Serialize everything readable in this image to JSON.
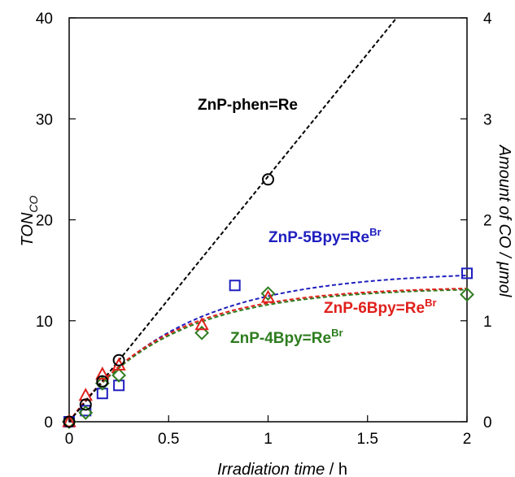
{
  "chart_data": {
    "type": "scatter",
    "xlabel": "Irradiation time",
    "xlabel_unit": " / h",
    "ylabel_main": "TON",
    "ylabel_sub": "CO",
    "y2label": "Amount of CO / μmol",
    "xlim": [
      0,
      2
    ],
    "ylim": [
      0,
      40
    ],
    "y2lim": [
      0,
      4
    ],
    "xticks": [
      "0",
      "0.5",
      "1",
      "1.5",
      "2"
    ],
    "yticks": [
      "0",
      "10",
      "20",
      "30",
      "40"
    ],
    "y2ticks": [
      "0",
      "1",
      "2",
      "3",
      "4"
    ],
    "grid": false,
    "series": [
      {
        "name": "ZnP-phen=Re",
        "label_main": "ZnP-phen=Re",
        "label_sup": "",
        "color": "#000000",
        "marker": "circle",
        "x": [
          0,
          0.083,
          0.167,
          0.25,
          1.0
        ],
        "y": [
          0,
          1.7,
          4.0,
          6.1,
          24.0
        ],
        "fit": "linear",
        "slope": 24.3
      },
      {
        "name": "ZnP-5Bpy=ReBr",
        "label_main": "ZnP-5Bpy=Re",
        "label_sup": "Br",
        "color": "#1f1fbf",
        "marker": "square",
        "x": [
          0,
          0.083,
          0.167,
          0.25,
          0.833,
          2.0
        ],
        "y": [
          0,
          1.1,
          2.8,
          3.6,
          13.5,
          14.7
        ],
        "fit": "exp",
        "fit_a": 14.9,
        "fit_k": 1.8
      },
      {
        "name": "ZnP-6Bpy=ReBr",
        "label_main": "ZnP-6Bpy=Re",
        "label_sup": "Br",
        "color": "#e0201c",
        "marker": "triangle",
        "x": [
          0,
          0.083,
          0.167,
          0.25,
          0.667,
          1.0
        ],
        "y": [
          0,
          2.6,
          4.7,
          5.6,
          9.6,
          12.3
        ],
        "fit": "exp",
        "fit_a": 13.4,
        "fit_k": 2.1
      },
      {
        "name": "ZnP-4Bpy=ReBr",
        "label_main": "ZnP-4Bpy=Re",
        "label_sup": "Br",
        "color": "#2e7d1f",
        "marker": "diamond",
        "x": [
          0,
          0.083,
          0.167,
          0.25,
          0.667,
          1.0,
          2.0
        ],
        "y": [
          0,
          0.9,
          3.8,
          4.6,
          8.8,
          12.7,
          12.6
        ],
        "fit": "exp",
        "fit_a": 13.3,
        "fit_k": 2.05
      }
    ]
  }
}
